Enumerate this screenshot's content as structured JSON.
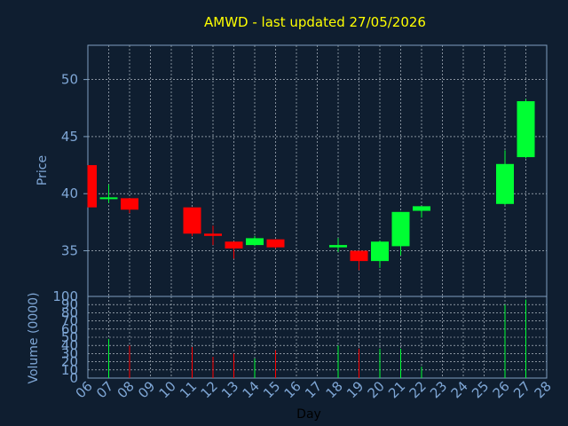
{
  "title": "AMWD - last updated 27/05/2026",
  "colors": {
    "background": "#0f1e30",
    "title": "#ffff00",
    "axis_text": "#7fa7d6",
    "up": "#00ff33",
    "down": "#ff0000",
    "grid": "#cfd8e0"
  },
  "chart_data": [
    {
      "type": "candlestick",
      "ylabel": "Price",
      "ylim": [
        31,
        53
      ],
      "yticks": [
        35,
        40,
        45,
        50
      ],
      "grid": true,
      "x": [
        "06",
        "07",
        "08",
        "09",
        "10",
        "11",
        "12",
        "13",
        "14",
        "15",
        "16",
        "17",
        "18",
        "19",
        "20",
        "21",
        "22",
        "23",
        "24",
        "25",
        "26",
        "27",
        "28"
      ],
      "candles": [
        {
          "day": "06",
          "open": 42.5,
          "close": 38.8,
          "high": 42.5,
          "low": 38.8
        },
        {
          "day": "07",
          "open": 39.5,
          "close": 39.6,
          "high": 40.8,
          "low": 39.2
        },
        {
          "day": "08",
          "open": 39.6,
          "close": 38.6,
          "high": 39.6,
          "low": 38.3
        },
        {
          "day": "11",
          "open": 38.8,
          "close": 36.5,
          "high": 38.8,
          "low": 36.3
        },
        {
          "day": "12",
          "open": 36.5,
          "close": 36.3,
          "high": 37.2,
          "low": 35.5
        },
        {
          "day": "13",
          "open": 35.8,
          "close": 35.2,
          "high": 35.8,
          "low": 34.3
        },
        {
          "day": "14",
          "open": 35.5,
          "close": 36.1,
          "high": 36.3,
          "low": 35.4
        },
        {
          "day": "15",
          "open": 36.0,
          "close": 35.3,
          "high": 36.0,
          "low": 35.2
        },
        {
          "day": "18",
          "open": 35.3,
          "close": 35.5,
          "high": 36.1,
          "low": 34.9
        },
        {
          "day": "19",
          "open": 35.0,
          "close": 34.1,
          "high": 35.0,
          "low": 33.3
        },
        {
          "day": "20",
          "open": 34.1,
          "close": 35.8,
          "high": 35.9,
          "low": 33.5
        },
        {
          "day": "21",
          "open": 35.4,
          "close": 38.4,
          "high": 38.4,
          "low": 34.6
        },
        {
          "day": "22",
          "open": 38.5,
          "close": 38.9,
          "high": 38.9,
          "low": 37.9
        },
        {
          "day": "26",
          "open": 39.1,
          "close": 42.6,
          "high": 43.8,
          "low": 39.0
        },
        {
          "day": "27",
          "open": 43.2,
          "close": 48.1,
          "high": 48.3,
          "low": 43.1
        }
      ]
    },
    {
      "type": "bar",
      "ylabel": "Volume (0000)",
      "xlabel": "Day",
      "ylim": [
        0,
        100
      ],
      "yticks": [
        0,
        10,
        20,
        30,
        40,
        50,
        60,
        70,
        80,
        90,
        100
      ],
      "ytick_labels": [
        "0",
        "10",
        "20",
        "30",
        "40",
        "50",
        "60",
        "70",
        "80",
        "90",
        "100"
      ],
      "grid": true,
      "volumes": [
        {
          "day": "06",
          "value": 0,
          "dir": "down"
        },
        {
          "day": "07",
          "value": 48,
          "dir": "up"
        },
        {
          "day": "08",
          "value": 40,
          "dir": "down"
        },
        {
          "day": "11",
          "value": 38,
          "dir": "down"
        },
        {
          "day": "12",
          "value": 26,
          "dir": "down"
        },
        {
          "day": "13",
          "value": 30,
          "dir": "down"
        },
        {
          "day": "14",
          "value": 24,
          "dir": "up"
        },
        {
          "day": "15",
          "value": 34,
          "dir": "down"
        },
        {
          "day": "18",
          "value": 40,
          "dir": "up"
        },
        {
          "day": "19",
          "value": 36,
          "dir": "down"
        },
        {
          "day": "20",
          "value": 36,
          "dir": "up"
        },
        {
          "day": "21",
          "value": 36,
          "dir": "up"
        },
        {
          "day": "22",
          "value": 14,
          "dir": "up"
        },
        {
          "day": "26",
          "value": 90,
          "dir": "up"
        },
        {
          "day": "27",
          "value": 96,
          "dir": "up"
        }
      ]
    }
  ]
}
